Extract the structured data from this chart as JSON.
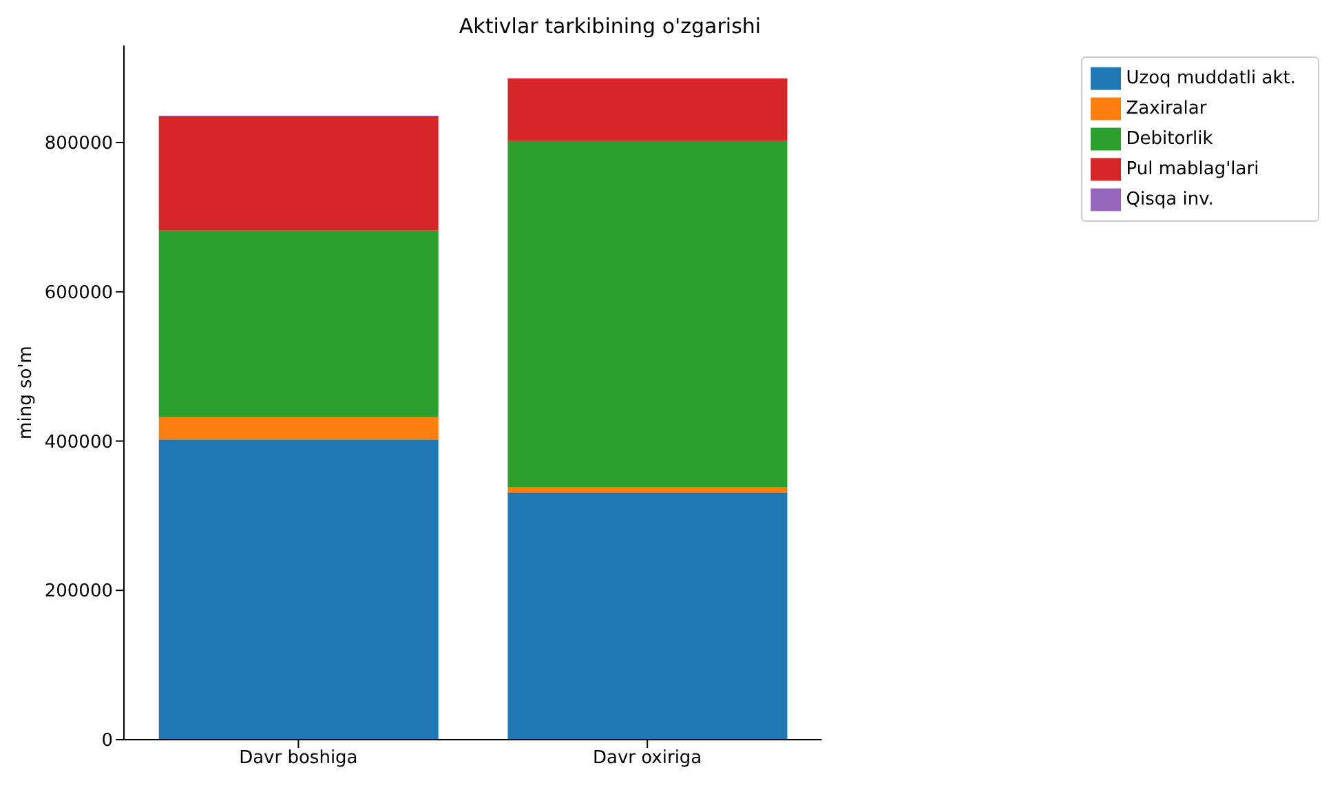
{
  "chart_data": {
    "type": "bar",
    "title": "Aktivlar tarkibining o'zgarishi",
    "ylabel": "ming so'm",
    "categories": [
      "Davr boshiga",
      "Davr oxiriga"
    ],
    "stacked": true,
    "series": [
      {
        "name": "Uzoq muddatli akt.",
        "color": "#1f77b4",
        "values": [
          402000,
          331000
        ]
      },
      {
        "name": "Zaxiralar",
        "color": "#ff7f0e",
        "values": [
          30000,
          7000
        ]
      },
      {
        "name": "Debitorlik",
        "color": "#2ca02c",
        "values": [
          250000,
          464000
        ]
      },
      {
        "name": "Pul mablag'lari",
        "color": "#d62728",
        "values": [
          153000,
          84000
        ]
      },
      {
        "name": "Qisqa inv.",
        "color": "#9467bd",
        "values": [
          1000,
          0
        ]
      }
    ],
    "ylim": [
      0,
      930000
    ],
    "yticks": [
      0,
      200000,
      400000,
      600000,
      800000
    ],
    "grid": false,
    "legend": "top right"
  }
}
